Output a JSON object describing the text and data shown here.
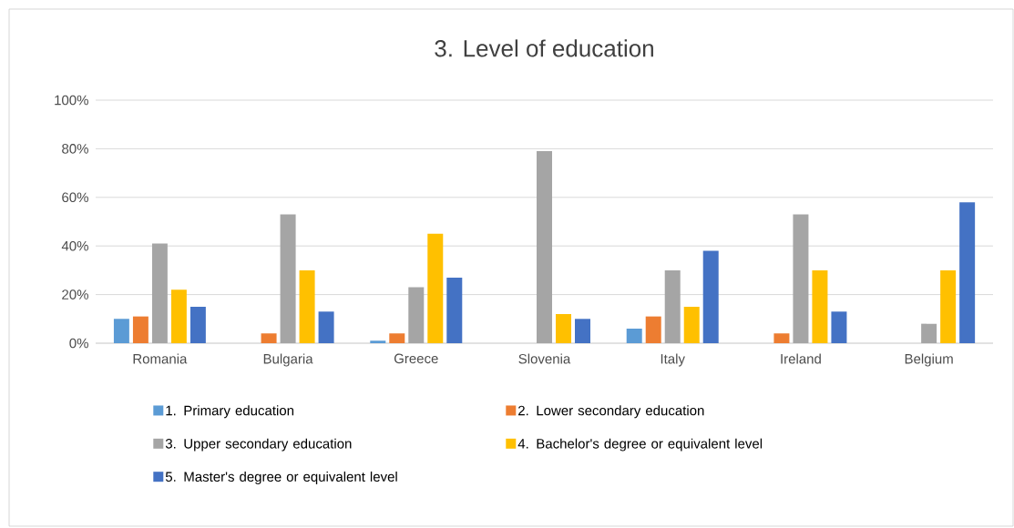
{
  "chart_data": {
    "type": "bar",
    "title": "3. Level of education",
    "categories": [
      "Romania",
      "Bulgaria",
      "Greece",
      "Slovenia",
      "Italy",
      "Ireland",
      "Belgium"
    ],
    "series": [
      {
        "name": "1. Primary education",
        "color": "#5b9bd5",
        "values": [
          10,
          null,
          1,
          null,
          6,
          null,
          null
        ]
      },
      {
        "name": "2. Lower secondary education",
        "color": "#ed7d31",
        "values": [
          11,
          4,
          4,
          null,
          11,
          4,
          null
        ]
      },
      {
        "name": "3. Upper secondary education",
        "color": "#a5a5a5",
        "values": [
          41,
          53,
          23,
          79,
          30,
          53,
          8
        ]
      },
      {
        "name": "4. Bachelor's degree or equivalent level",
        "color": "#ffc000",
        "values": [
          22,
          30,
          45,
          12,
          15,
          30,
          30
        ]
      },
      {
        "name": "5. Master's degree or equivalent level",
        "color": "#4472c4",
        "values": [
          15,
          13,
          27,
          10,
          38,
          13,
          58
        ]
      }
    ],
    "ylim": [
      0,
      100
    ],
    "yticks": [
      {
        "value": 0,
        "label": "0%"
      },
      {
        "value": 20,
        "label": "20%"
      },
      {
        "value": 40,
        "label": "40%"
      },
      {
        "value": 60,
        "label": "60%"
      },
      {
        "value": 80,
        "label": "80%"
      },
      {
        "value": 100,
        "label": "100%"
      }
    ],
    "grid": "y",
    "legend": "bottom"
  }
}
